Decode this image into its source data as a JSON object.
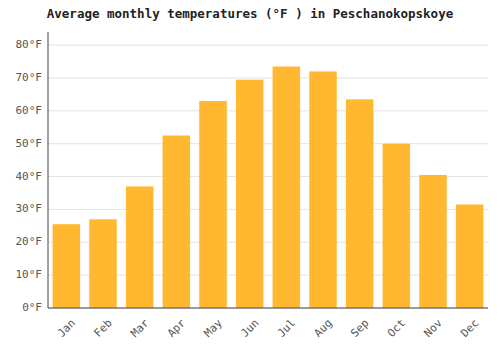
{
  "chart_data": {
    "type": "bar",
    "title": "Average monthly temperatures (°F ) in Peschanokopskoye",
    "categories": [
      "Jan",
      "Feb",
      "Mar",
      "Apr",
      "May",
      "Jun",
      "Jul",
      "Aug",
      "Sep",
      "Oct",
      "Nov",
      "Dec"
    ],
    "values": [
      25.5,
      27.0,
      37.0,
      52.5,
      63.0,
      69.5,
      73.5,
      72.0,
      63.5,
      50.0,
      40.5,
      31.5
    ],
    "color": "#FFB830",
    "ylim": [
      0,
      84
    ],
    "yticks": [
      {
        "value": 0,
        "label": "0°F"
      },
      {
        "value": 10,
        "label": "10°F"
      },
      {
        "value": 20,
        "label": "20°F"
      },
      {
        "value": 30,
        "label": "30°F"
      },
      {
        "value": 40,
        "label": "40°F"
      },
      {
        "value": 50,
        "label": "50°F"
      },
      {
        "value": 60,
        "label": "60°F"
      },
      {
        "value": 70,
        "label": "70°F"
      },
      {
        "value": 80,
        "label": "80°F"
      }
    ],
    "grid": true
  }
}
